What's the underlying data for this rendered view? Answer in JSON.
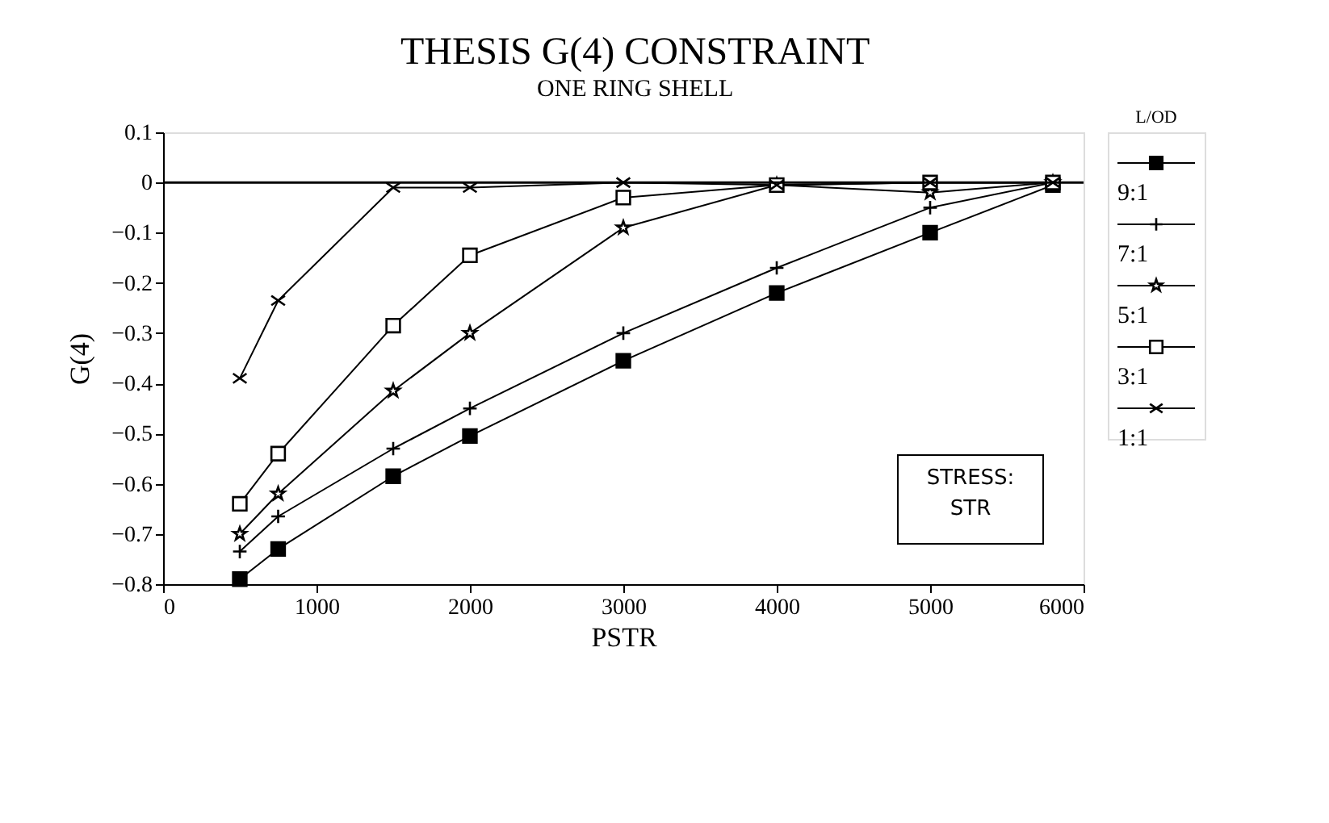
{
  "chart_data": {
    "type": "line",
    "title": "THESIS G(4) CONSTRAINT",
    "subtitle": "ONE RING SHELL",
    "xlabel": "PSTR",
    "ylabel": "G(4)",
    "legend_title": "L/OD",
    "legend": "right",
    "x": [
      500,
      750,
      1500,
      2000,
      3000,
      4000,
      5000,
      5800
    ],
    "series": [
      {
        "name": "9:1",
        "color": "#000000",
        "marker": "square",
        "values": [
          -0.79,
          -0.73,
          -0.585,
          -0.505,
          -0.355,
          -0.22,
          -0.1,
          -0.005
        ]
      },
      {
        "name": "7:1",
        "color": "#000000",
        "marker": "cross",
        "values": [
          -0.735,
          -0.665,
          -0.53,
          -0.45,
          -0.3,
          -0.17,
          -0.05,
          0
        ]
      },
      {
        "name": "5:1",
        "color": "#000000",
        "marker": "star",
        "values": [
          -0.7,
          -0.62,
          -0.415,
          -0.3,
          -0.09,
          -0.005,
          -0.02,
          0
        ]
      },
      {
        "name": "3:1",
        "color": "#000000",
        "marker": "square_open",
        "values": [
          -0.64,
          -0.54,
          -0.285,
          -0.145,
          -0.03,
          -0.005,
          0,
          0
        ]
      },
      {
        "name": "1:1",
        "color": "#000000",
        "marker": "x",
        "values": [
          -0.39,
          -0.235,
          -0.01,
          -0.01,
          0,
          -0.005,
          0,
          0
        ]
      }
    ],
    "xlim": [
      0,
      6000
    ],
    "xticks": [
      0,
      1000,
      2000,
      3000,
      4000,
      5000,
      6000
    ],
    "ylim": [
      -0.8,
      0.1
    ],
    "yticks": [
      -0.8,
      -0.7,
      -0.6,
      -0.5,
      -0.4,
      -0.3,
      -0.2,
      -0.1,
      0,
      0.1
    ],
    "ref_lines": [
      {
        "axis": "y",
        "value": 0,
        "color": "#000000"
      }
    ],
    "grid": false,
    "line_style": "solid",
    "annotations": [
      "STRESS:\nSTR"
    ]
  }
}
